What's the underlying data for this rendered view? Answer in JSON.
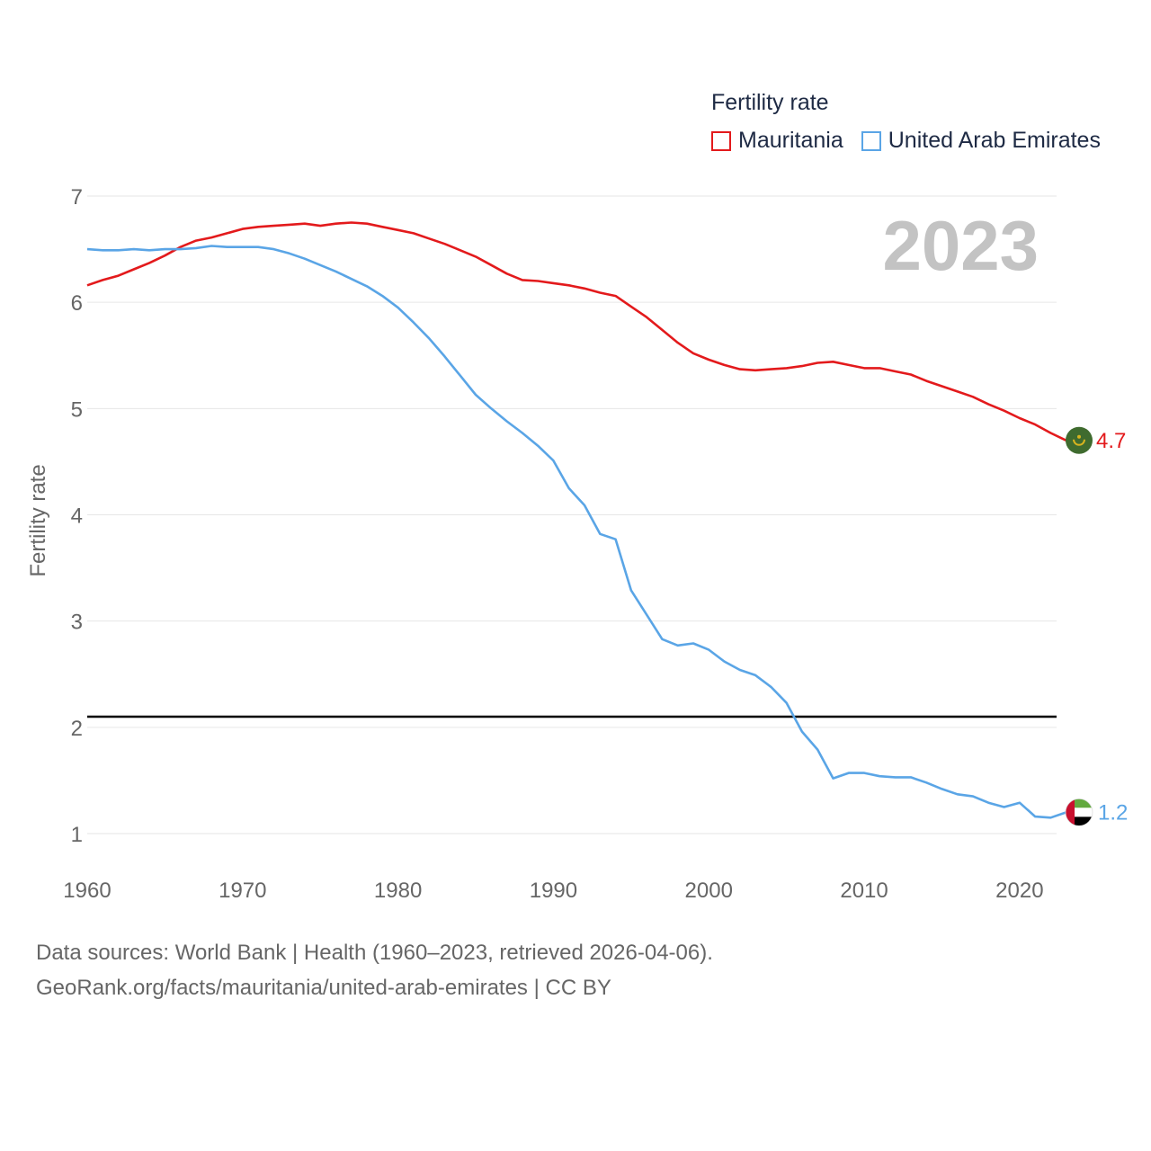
{
  "legend": {
    "title": "Fertility rate",
    "items": [
      {
        "name": "Mauritania",
        "color": "#e31a1c"
      },
      {
        "name": "United Arab Emirates",
        "color": "#5aa5e6"
      }
    ]
  },
  "footer": {
    "line1": "Data sources: World Bank | Health (1960–2023, retrieved 2026-04-06).",
    "line2": "GeoRank.org/facts/mauritania/united-arab-emirates | CC BY"
  },
  "colors": {
    "grid": "#e6e6e6",
    "tick_text": "#666666",
    "year_watermark": "#c3c3c3",
    "reference_line": "#000000",
    "mauritania_flag_green": "#3f6b2f",
    "mauritania_flag_gold": "#d8b41f",
    "uae_flag_red": "#c8102e",
    "uae_flag_green": "#62a93e",
    "uae_flag_black": "#000000"
  },
  "chart_data": {
    "type": "line",
    "title": "Fertility rate",
    "year_label": "2023",
    "ylabel": "Fertility rate",
    "xlabel": "",
    "xlim": [
      1960,
      2024
    ],
    "ylim": [
      0.5,
      7.2
    ],
    "x_ticks": [
      1960,
      1970,
      1980,
      1990,
      2000,
      2010,
      2020
    ],
    "y_ticks": [
      1,
      2,
      3,
      4,
      5,
      6,
      7
    ],
    "reference_line": {
      "y": 2.1
    },
    "x": [
      1960,
      1961,
      1962,
      1963,
      1964,
      1965,
      1966,
      1967,
      1968,
      1969,
      1970,
      1971,
      1972,
      1973,
      1974,
      1975,
      1976,
      1977,
      1978,
      1979,
      1980,
      1981,
      1982,
      1983,
      1984,
      1985,
      1986,
      1987,
      1988,
      1989,
      1990,
      1991,
      1992,
      1993,
      1994,
      1995,
      1996,
      1997,
      1998,
      1999,
      2000,
      2001,
      2002,
      2003,
      2004,
      2005,
      2006,
      2007,
      2008,
      2009,
      2010,
      2011,
      2012,
      2013,
      2014,
      2015,
      2016,
      2017,
      2018,
      2019,
      2020,
      2021,
      2022,
      2023
    ],
    "series": [
      {
        "name": "Mauritania",
        "end_label": "4.7",
        "values": [
          6.16,
          6.21,
          6.25,
          6.31,
          6.37,
          6.44,
          6.52,
          6.58,
          6.61,
          6.65,
          6.69,
          6.71,
          6.72,
          6.73,
          6.74,
          6.72,
          6.74,
          6.75,
          6.74,
          6.71,
          6.68,
          6.65,
          6.6,
          6.55,
          6.49,
          6.43,
          6.35,
          6.27,
          6.21,
          6.2,
          6.18,
          6.16,
          6.13,
          6.09,
          6.06,
          5.96,
          5.86,
          5.74,
          5.62,
          5.52,
          5.46,
          5.41,
          5.37,
          5.36,
          5.37,
          5.38,
          5.4,
          5.43,
          5.44,
          5.41,
          5.38,
          5.38,
          5.35,
          5.32,
          5.26,
          5.21,
          5.16,
          5.11,
          5.04,
          4.98,
          4.91,
          4.85,
          4.77,
          4.7
        ]
      },
      {
        "name": "United Arab Emirates",
        "end_label": "1.2",
        "values": [
          6.5,
          6.49,
          6.49,
          6.5,
          6.49,
          6.5,
          6.5,
          6.51,
          6.53,
          6.52,
          6.52,
          6.52,
          6.5,
          6.46,
          6.41,
          6.35,
          6.29,
          6.22,
          6.15,
          6.06,
          5.95,
          5.81,
          5.66,
          5.49,
          5.31,
          5.13,
          5.0,
          4.88,
          4.77,
          4.65,
          4.51,
          4.25,
          4.09,
          3.82,
          3.77,
          3.29,
          3.06,
          2.83,
          2.77,
          2.79,
          2.73,
          2.62,
          2.54,
          2.49,
          2.38,
          2.23,
          1.96,
          1.79,
          1.52,
          1.57,
          1.57,
          1.54,
          1.53,
          1.53,
          1.48,
          1.42,
          1.37,
          1.35,
          1.29,
          1.25,
          1.29,
          1.16,
          1.15,
          1.2
        ]
      }
    ]
  }
}
